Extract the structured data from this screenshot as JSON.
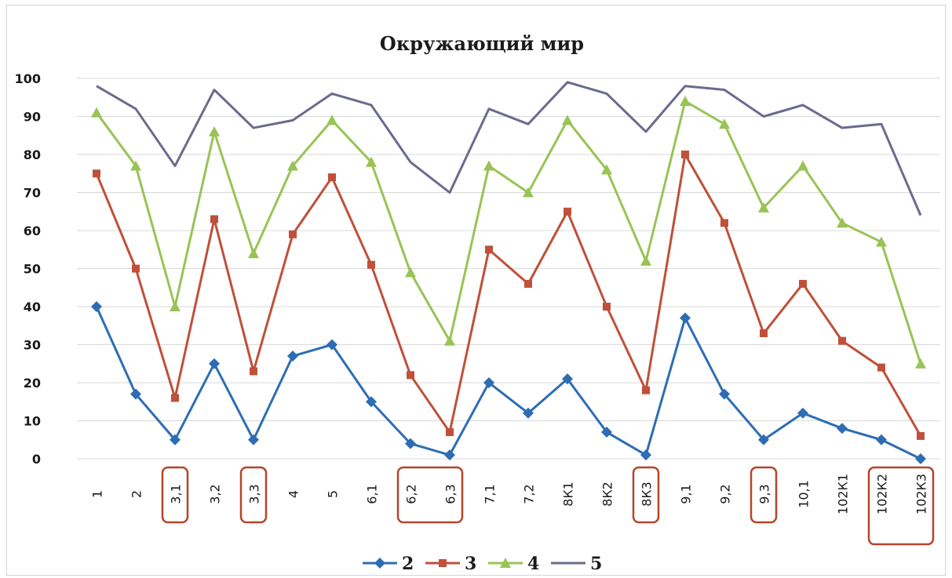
{
  "chart_data": {
    "type": "line",
    "title": "Окружающий мир",
    "xlabel": "",
    "ylabel": "",
    "ylim": [
      0,
      100
    ],
    "yticks": [
      0,
      10,
      20,
      30,
      40,
      50,
      60,
      70,
      80,
      90,
      100
    ],
    "grid": true,
    "legend_position": "bottom",
    "categories": [
      "1",
      "2",
      "3,1",
      "3,2",
      "3,3",
      "4",
      "5",
      "6,1",
      "6,2",
      "6,3",
      "7,1",
      "7,2",
      "8К1",
      "8К2",
      "8К3",
      "9,1",
      "9,2",
      "9,3",
      "10,1",
      "102К1",
      "102К2",
      "102К3"
    ],
    "highlighted_categories": [
      [
        "3,1"
      ],
      [
        "3,3"
      ],
      [
        "6,2",
        "6,3"
      ],
      [
        "8К3"
      ],
      [
        "9,3"
      ],
      [
        "102К2",
        "102К3"
      ]
    ],
    "highlight_color": "#b5452a",
    "series": [
      {
        "name": "2",
        "color": "#2e6db4",
        "marker": "diamond",
        "values": [
          40,
          17,
          5,
          25,
          5,
          27,
          30,
          15,
          4,
          1,
          20,
          12,
          21,
          7,
          1,
          37,
          17,
          5,
          12,
          8,
          5,
          0
        ]
      },
      {
        "name": "3",
        "color": "#c0503a",
        "marker": "square",
        "values": [
          75,
          50,
          16,
          63,
          23,
          59,
          74,
          51,
          22,
          7,
          55,
          46,
          65,
          40,
          18,
          80,
          62,
          33,
          46,
          31,
          24,
          6
        ]
      },
      {
        "name": "4",
        "color": "#98c455",
        "marker": "triangle",
        "values": [
          91,
          77,
          40,
          86,
          54,
          77,
          89,
          78,
          49,
          31,
          77,
          70,
          89,
          76,
          52,
          94,
          88,
          66,
          77,
          62,
          57,
          25
        ]
      },
      {
        "name": "5",
        "color": "#6a6b8e",
        "marker": "none",
        "values": [
          98,
          92,
          77,
          97,
          87,
          89,
          96,
          93,
          78,
          70,
          92,
          88,
          99,
          96,
          86,
          98,
          97,
          90,
          93,
          87,
          88,
          64
        ]
      }
    ]
  }
}
